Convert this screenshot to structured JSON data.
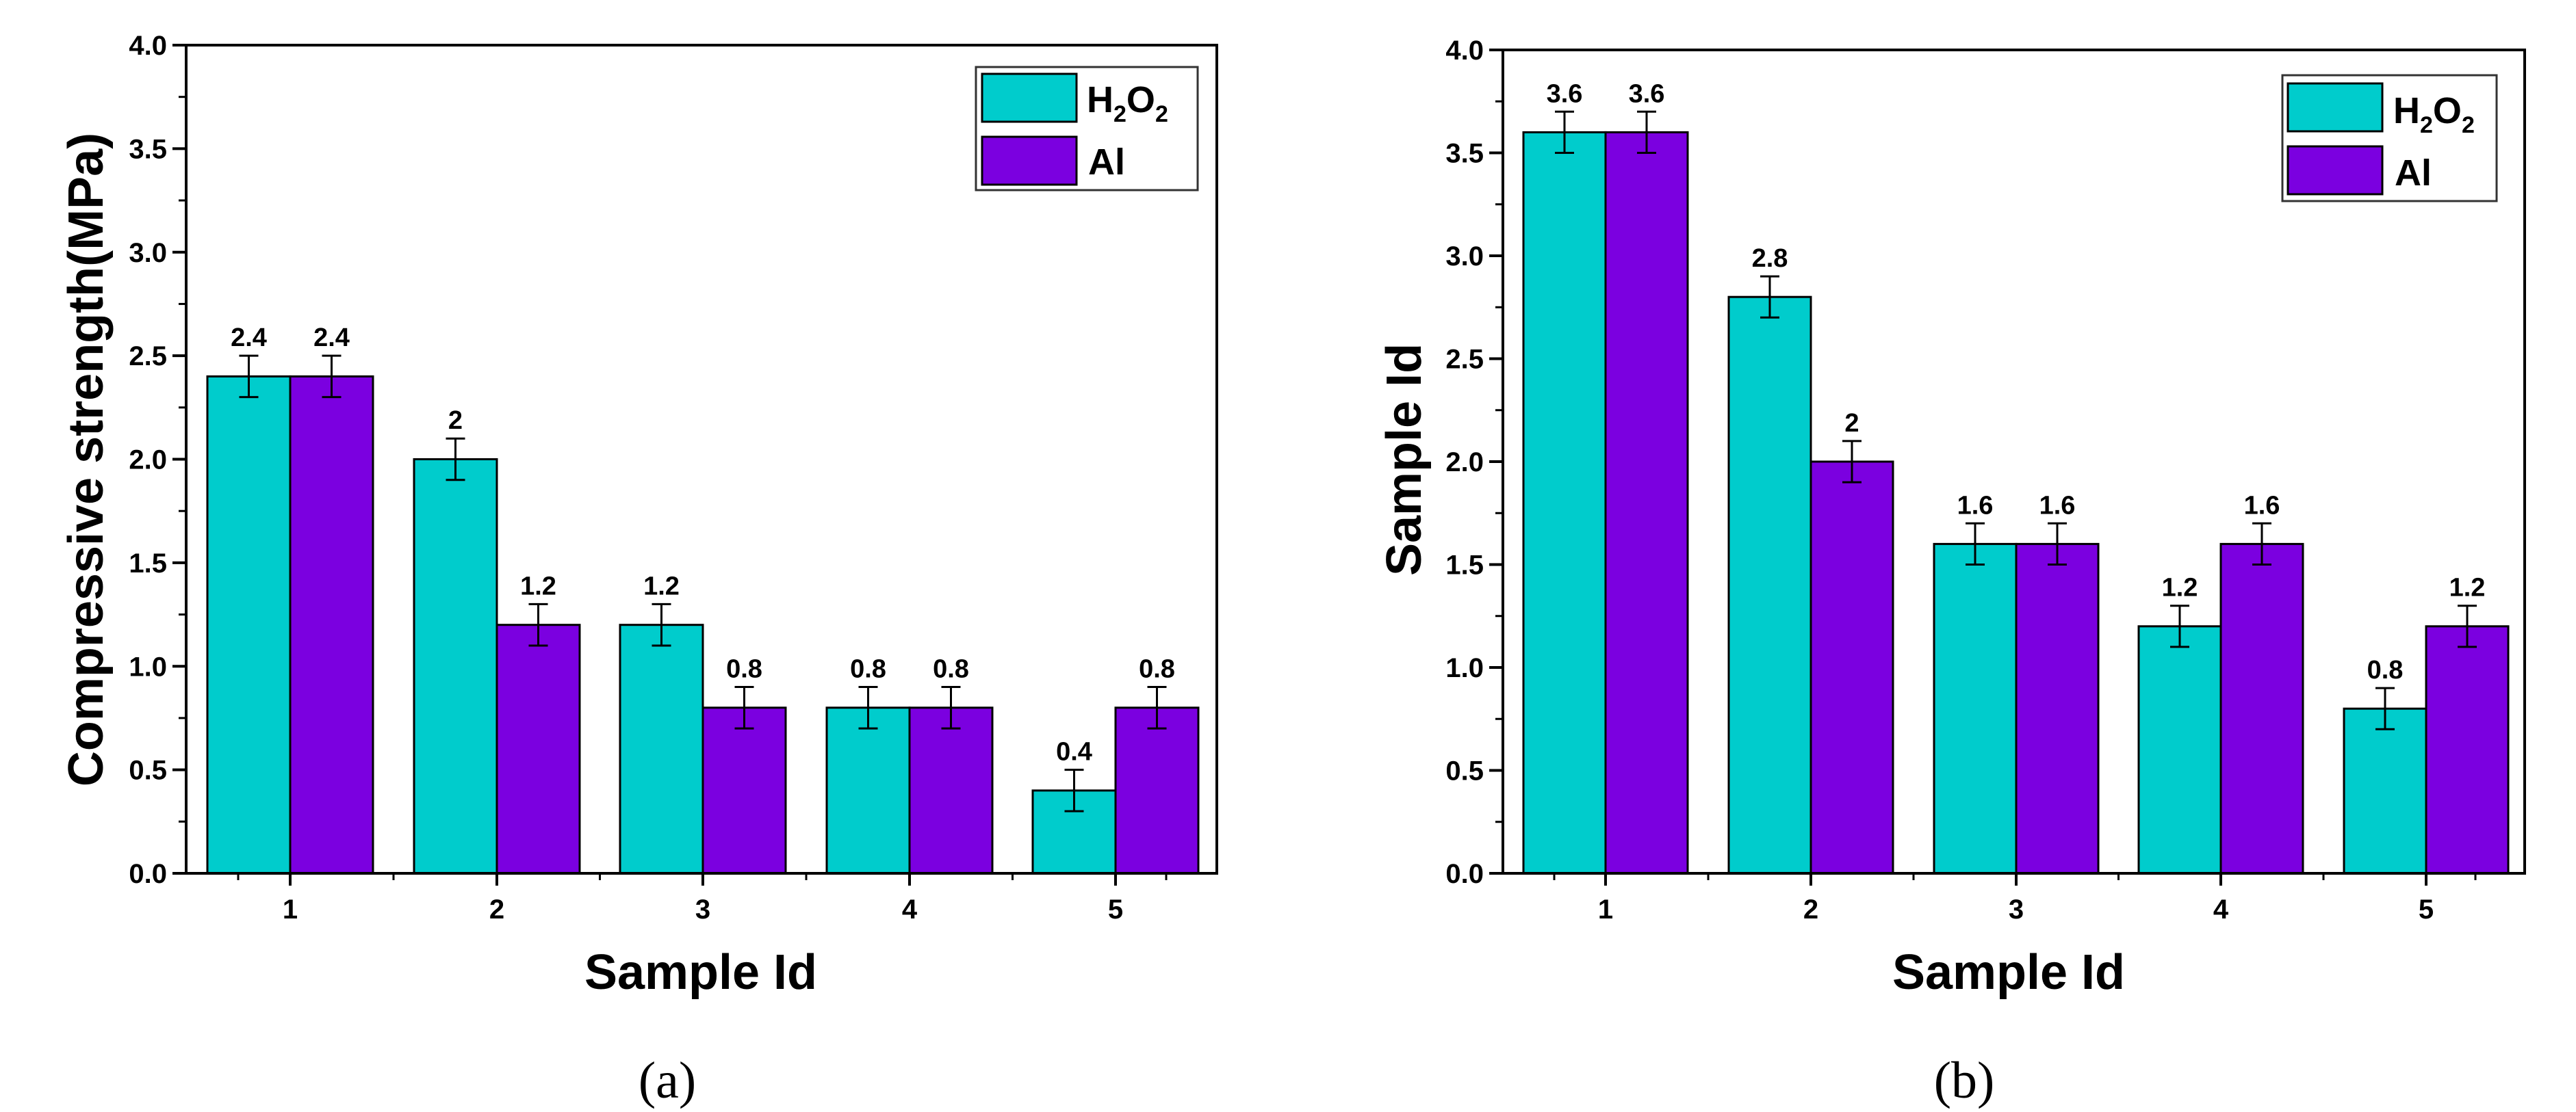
{
  "colors": {
    "h2o2": "#00CCCC",
    "al": "#7B00E0"
  },
  "chart_data": [
    {
      "type": "bar",
      "panel": "a",
      "caption": "(a)",
      "categories": [
        "1",
        "2",
        "3",
        "4",
        "5"
      ],
      "series": [
        {
          "name": "H2O2",
          "legend_main": "H",
          "legend_sub1": "2",
          "legend_mid": "O",
          "legend_sub2": "2",
          "values": [
            2.4,
            2.0,
            1.2,
            0.8,
            0.4
          ],
          "labels": [
            "2.4",
            "2",
            "1.2",
            "0.8",
            "0.4"
          ],
          "error": 0.1
        },
        {
          "name": "Al",
          "legend_main": "Al",
          "values": [
            2.4,
            1.2,
            0.8,
            0.8,
            0.8
          ],
          "labels": [
            "2.4",
            "1.2",
            "0.8",
            "0.8",
            "0.8"
          ],
          "error": 0.1
        }
      ],
      "xlabel": "Sample Id",
      "ylabel": "Compressive strength(MPa)",
      "ylim": [
        0,
        4.0
      ],
      "yticks": [
        "0.0",
        "0.5",
        "1.0",
        "1.5",
        "2.0",
        "2.5",
        "3.0",
        "3.5",
        "4.0"
      ],
      "legend_position": "top-right"
    },
    {
      "type": "bar",
      "panel": "b",
      "caption": "(b)",
      "categories": [
        "1",
        "2",
        "3",
        "4",
        "5"
      ],
      "series": [
        {
          "name": "H2O2",
          "legend_main": "H",
          "legend_sub1": "2",
          "legend_mid": "O",
          "legend_sub2": "2",
          "values": [
            3.6,
            2.8,
            1.6,
            1.2,
            0.8
          ],
          "labels": [
            "3.6",
            "2.8",
            "1.6",
            "1.2",
            "0.8"
          ],
          "error": 0.1
        },
        {
          "name": "Al",
          "legend_main": "Al",
          "values": [
            3.6,
            2.0,
            1.6,
            1.6,
            1.2
          ],
          "labels": [
            "3.6",
            "2",
            "1.6",
            "1.6",
            "1.2"
          ],
          "error": 0.1
        }
      ],
      "xlabel": "Sample Id",
      "ylabel": "Sample Id",
      "ylim": [
        0,
        4.0
      ],
      "yticks": [
        "0.0",
        "0.5",
        "1.0",
        "1.5",
        "2.0",
        "2.5",
        "3.0",
        "3.5",
        "4.0"
      ],
      "legend_position": "top-right"
    }
  ]
}
